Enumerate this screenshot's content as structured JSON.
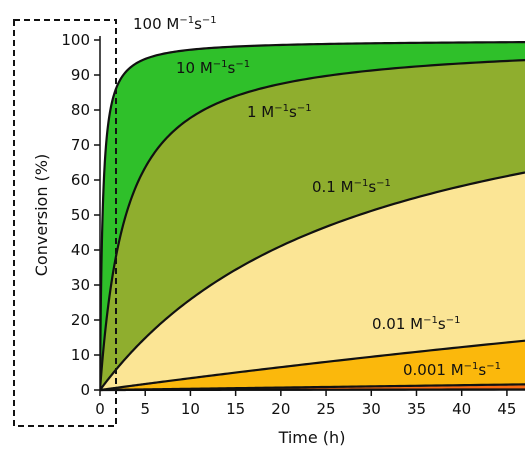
{
  "chart_data": {
    "type": "area",
    "title": "",
    "xlabel": "Time (h)",
    "ylabel": "Conversion (%)",
    "x_unit": "h",
    "y_unit": "%",
    "xlim": [
      0,
      47
    ],
    "ylim": [
      0,
      100
    ],
    "xticks": [
      0,
      5,
      10,
      15,
      20,
      25,
      30,
      35,
      40,
      45
    ],
    "yticks": [
      0,
      10,
      20,
      30,
      40,
      50,
      60,
      70,
      80,
      90,
      100
    ],
    "model": "second-order conversion: y = 100 * k*C*t / (1 + k*C*t)",
    "series": [
      {
        "name": "100 M⁻¹s⁻¹",
        "k": 100,
        "color": "#2fc02a"
      },
      {
        "name": "10 M⁻¹s⁻¹",
        "k": 10,
        "color": "#8fae2e"
      },
      {
        "name": "1 M⁻¹s⁻¹",
        "k": 1,
        "color": "#fbe595"
      },
      {
        "name": "0.1 M⁻¹s⁻¹",
        "k": 0.1,
        "color": "#fbb80c"
      },
      {
        "name": "0.01 M⁻¹s⁻¹",
        "k": 0.01,
        "color": "#f96a12"
      },
      {
        "name": "0.001 M⁻¹s⁻¹",
        "k": 0.001,
        "color": "#d62a0e"
      }
    ],
    "labels": {
      "k100": {
        "base": "100 M",
        "exp1": "−1",
        "mid": "s",
        "exp2": "−1"
      },
      "k10": {
        "base": "10 M",
        "exp1": "−1",
        "mid": "s",
        "exp2": "−1"
      },
      "k1": {
        "base": "1 M",
        "exp1": "−1",
        "mid": "s",
        "exp2": "−1"
      },
      "k01": {
        "base": "0.1 M",
        "exp1": "−1",
        "mid": "s",
        "exp2": "−1"
      },
      "k001": {
        "base": "0.01 M",
        "exp1": "−1",
        "mid": "s",
        "exp2": "−1"
      },
      "k0001": {
        "base": "0.001 M",
        "exp1": "−1",
        "mid": "s",
        "exp2": "−1"
      }
    },
    "grid": false,
    "legend": "none",
    "annotation": "dashed box highlighting the first 1.5 h"
  }
}
